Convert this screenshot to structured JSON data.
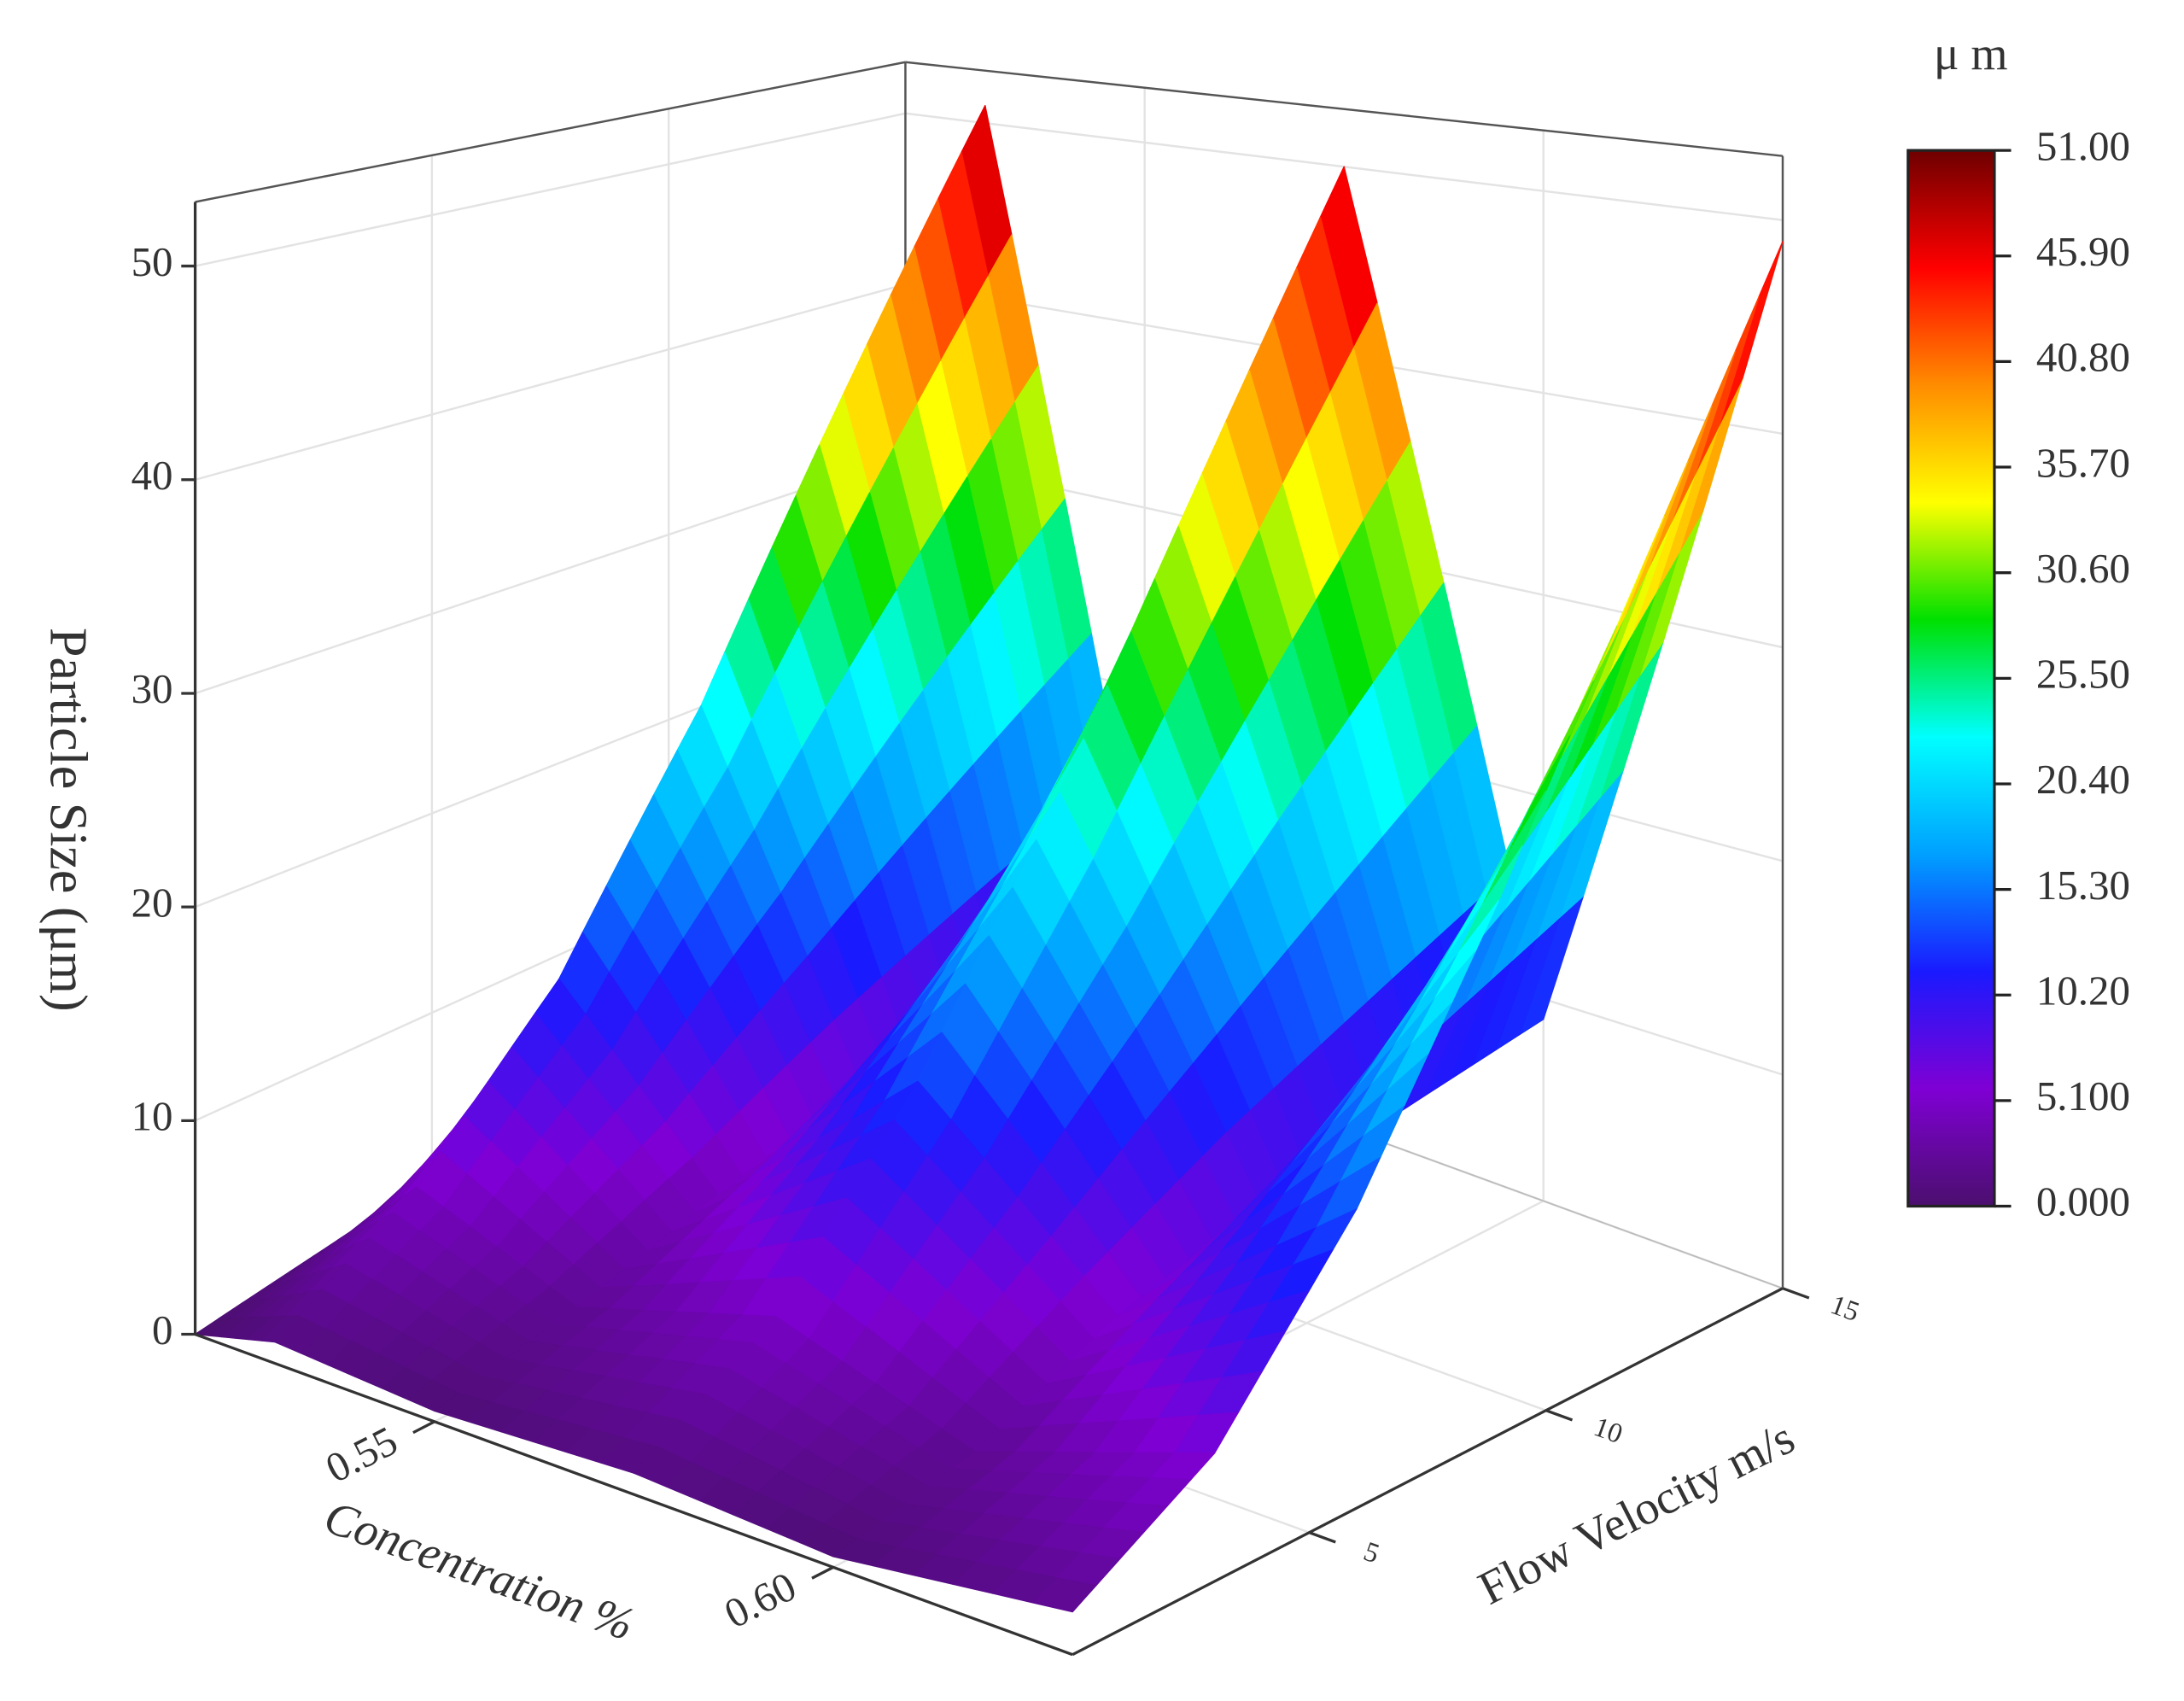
{
  "chart_data": {
    "type": "surface",
    "xlabel": "Concentration %",
    "ylabel": "Flow Velocity m/s",
    "zlabel": "Particle Size (μm)",
    "colorbar_label": "μ m",
    "x": [
      0.52,
      0.53,
      0.55,
      0.575,
      0.6,
      0.63
    ],
    "y": [
      0,
      3,
      6,
      9,
      12,
      15
    ],
    "z": [
      [
        0,
        1,
        0.5,
        1,
        0.5,
        2
      ],
      [
        1,
        5,
        2,
        5,
        2,
        6
      ],
      [
        2,
        12,
        4,
        13,
        5,
        14
      ],
      [
        3,
        23,
        6,
        24,
        7,
        25
      ],
      [
        4,
        37,
        7,
        37,
        8,
        37
      ],
      [
        5,
        51,
        8,
        50,
        9,
        49
      ]
    ],
    "xlim": [
      0.52,
      0.63
    ],
    "xticks": [
      0.55,
      {
        "value": 0.6,
        "label": "0.60"
      }
    ],
    "ylim": [
      0,
      15
    ],
    "yticks": [
      5,
      10,
      15
    ],
    "zlim": [
      0,
      53
    ],
    "zticks": [
      0,
      10,
      20,
      30,
      40,
      50
    ],
    "clim": [
      0,
      51
    ],
    "cticks": [
      {
        "value": 0,
        "label": "0.000"
      },
      {
        "value": 5.1,
        "label": "5.100"
      },
      {
        "value": 10.2,
        "label": "10.20"
      },
      {
        "value": 15.3,
        "label": "15.30"
      },
      {
        "value": 20.4,
        "label": "20.40"
      },
      {
        "value": 25.5,
        "label": "25.50"
      },
      {
        "value": 30.6,
        "label": "30.60"
      },
      {
        "value": 35.7,
        "label": "35.70"
      },
      {
        "value": 40.8,
        "label": "40.80"
      },
      {
        "value": 45.9,
        "label": "45.90"
      },
      {
        "value": 51,
        "label": "51.00"
      }
    ],
    "colormap": [
      "#4b0f6e",
      "#7f00d4",
      "#1a1aff",
      "#00a0ff",
      "#00ffff",
      "#00e000",
      "#ffff00",
      "#ff8c00",
      "#ff0000",
      "#6e0000"
    ],
    "grid": true
  }
}
